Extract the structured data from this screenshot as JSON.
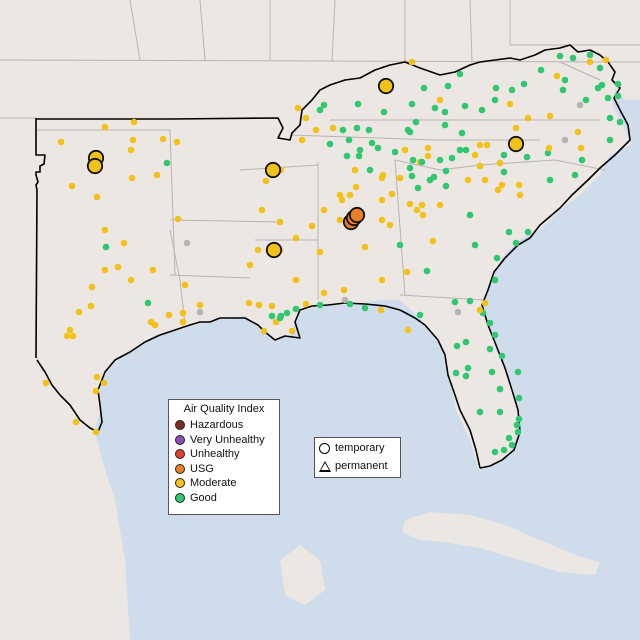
{
  "legend": {
    "title": "Air Quality Index",
    "categories": [
      {
        "label": "Hazardous",
        "color": "#7e2a25"
      },
      {
        "label": "Very Unhealthy",
        "color": "#8f4db3"
      },
      {
        "label": "Unhealthy",
        "color": "#e1412f"
      },
      {
        "label": "USG",
        "color": "#e97f26"
      },
      {
        "label": "Moderate",
        "color": "#f2c21a"
      },
      {
        "label": "Good",
        "color": "#2fc770"
      }
    ],
    "site_types": [
      {
        "label": "temporary",
        "shape": "circle"
      },
      {
        "label": "permanent",
        "shape": "triangle"
      }
    ]
  },
  "colors": {
    "ocean": "#cfdceb",
    "land": "#ece7e2",
    "outline": "#000000",
    "state_lines": "#b9b4b1",
    "no_data": "#b4b4b4"
  }
}
